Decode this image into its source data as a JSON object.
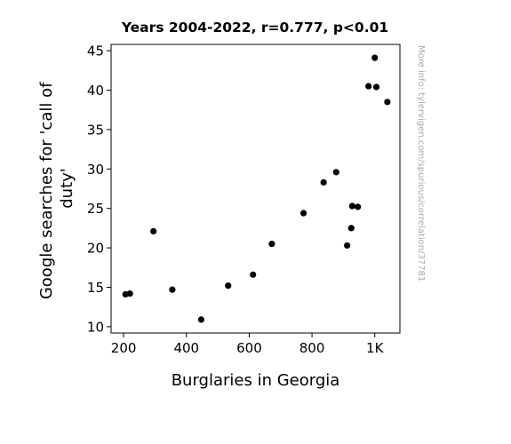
{
  "chart_data": {
    "type": "scatter",
    "title": "Years 2004-2022, r=0.777, p<0.01",
    "xlabel": "Burglaries in Georgia",
    "ylabel_lines": [
      "Google searches for 'call of",
      "duty'"
    ],
    "xlim": [
      160,
      1080
    ],
    "ylim": [
      9.2,
      45.8
    ],
    "x_ticks": [
      {
        "value": 200,
        "label": "200"
      },
      {
        "value": 400,
        "label": "400"
      },
      {
        "value": 600,
        "label": "600"
      },
      {
        "value": 800,
        "label": "800"
      },
      {
        "value": 1000,
        "label": "1K"
      }
    ],
    "y_ticks": [
      {
        "value": 10,
        "label": "10"
      },
      {
        "value": 15,
        "label": "15"
      },
      {
        "value": 20,
        "label": "20"
      },
      {
        "value": 25,
        "label": "25"
      },
      {
        "value": 30,
        "label": "30"
      },
      {
        "value": 35,
        "label": "35"
      },
      {
        "value": 40,
        "label": "40"
      },
      {
        "value": 45,
        "label": "45"
      }
    ],
    "points": [
      {
        "x": 206,
        "y": 14.1
      },
      {
        "x": 220,
        "y": 14.2
      },
      {
        "x": 295,
        "y": 22.1
      },
      {
        "x": 355,
        "y": 14.7
      },
      {
        "x": 447,
        "y": 10.9
      },
      {
        "x": 533,
        "y": 15.2
      },
      {
        "x": 612,
        "y": 16.6
      },
      {
        "x": 672,
        "y": 20.5
      },
      {
        "x": 773,
        "y": 24.4
      },
      {
        "x": 837,
        "y": 28.3
      },
      {
        "x": 877,
        "y": 29.6
      },
      {
        "x": 912,
        "y": 20.3
      },
      {
        "x": 925,
        "y": 22.5
      },
      {
        "x": 928,
        "y": 25.3
      },
      {
        "x": 946,
        "y": 25.2
      },
      {
        "x": 980,
        "y": 40.5
      },
      {
        "x": 1000,
        "y": 44.1
      },
      {
        "x": 1005,
        "y": 40.4
      },
      {
        "x": 1040,
        "y": 38.5
      }
    ],
    "marker_color": "#000000",
    "grid": false,
    "watermark": "More info: tylervigen.com/spurious/correlation/37781"
  }
}
